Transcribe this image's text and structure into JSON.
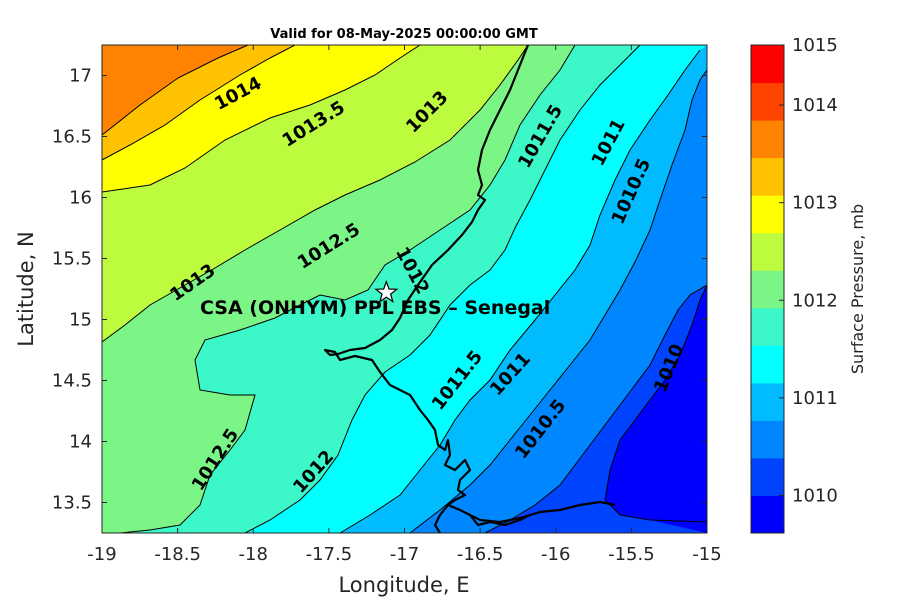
{
  "chart_data": {
    "type": "contour",
    "title": "Valid for 08-May-2025 00:00:00 GMT",
    "xlabel": "Longitude, E",
    "ylabel": "Latitude, N",
    "xlim": [
      -19,
      -15
    ],
    "ylim": [
      13.25,
      17.25
    ],
    "xticks": [
      -19,
      -18.5,
      -18,
      -17.5,
      -17,
      -16.5,
      -16,
      -15.5,
      -15
    ],
    "yticks": [
      13.5,
      14,
      14.5,
      15,
      15.5,
      16,
      16.5,
      17
    ],
    "colorbar": {
      "label": "Surface Pressure, mb",
      "levels": [
        1009.5,
        1009.75,
        1010,
        1010.25,
        1010.5,
        1010.75,
        1011,
        1011.25,
        1011.5,
        1011.75,
        1012,
        1012.25,
        1012.5,
        1012.75,
        1013,
        1013.25,
        1013.5,
        1013.75,
        1014,
        1014.25,
        1014.5
      ],
      "tick_values": [
        1010,
        1011,
        1012,
        1013,
        1014,
        1015
      ],
      "tick_labels": [
        "1010",
        "1011",
        "1012",
        "1013",
        "1014",
        "1015"
      ],
      "colors": [
        "#0000ff",
        "#0044ff",
        "#0087ff",
        "#00bcff",
        "#00ffff",
        "#3cf7c8",
        "#7bf586",
        "#bdfb3e",
        "#ffff00",
        "#ffc200",
        "#ff8200",
        "#ff4400",
        "#ff0000"
      ]
    },
    "contour_labels": [
      {
        "text": "1014",
        "lon": -18.1,
        "lat": 16.85,
        "angle": -28
      },
      {
        "text": "1013.5",
        "lon": -17.6,
        "lat": 16.6,
        "angle": -32
      },
      {
        "text": "1013",
        "lon": -16.85,
        "lat": 16.7,
        "angle": -45
      },
      {
        "text": "1011.5",
        "lon": -16.1,
        "lat": 16.5,
        "angle": -60
      },
      {
        "text": "1011",
        "lon": -15.65,
        "lat": 16.45,
        "angle": -62
      },
      {
        "text": "1010.5",
        "lon": -15.5,
        "lat": 16.05,
        "angle": -66
      },
      {
        "text": "1012.5",
        "lon": -17.5,
        "lat": 15.6,
        "angle": -32
      },
      {
        "text": "1012",
        "lon": -16.95,
        "lat": 15.4,
        "angle": 62
      },
      {
        "text": "1013",
        "lon": -18.4,
        "lat": 15.3,
        "angle": -35
      },
      {
        "text": "1011.5",
        "lon": -16.65,
        "lat": 14.5,
        "angle": -52
      },
      {
        "text": "1011",
        "lon": -16.3,
        "lat": 14.55,
        "angle": -48
      },
      {
        "text": "1010.5",
        "lon": -16.1,
        "lat": 14.1,
        "angle": -52
      },
      {
        "text": "1010",
        "lon": -15.25,
        "lat": 14.6,
        "angle": -68
      },
      {
        "text": "1012.5",
        "lon": -18.25,
        "lat": 13.85,
        "angle": -57
      },
      {
        "text": "1012",
        "lon": -17.6,
        "lat": 13.75,
        "angle": -48
      }
    ],
    "station": {
      "name": "CSA (ONHYM) PPL EBS  – Senegal",
      "lon": -17.12,
      "lat": 15.22
    }
  }
}
